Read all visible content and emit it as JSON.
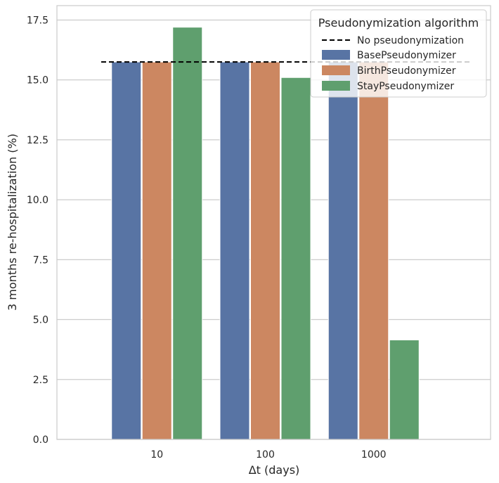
{
  "chart_data": {
    "type": "bar",
    "title": "",
    "xlabel": "Δt (days)",
    "ylabel": "3 months re-hospitalization (%)",
    "categories": [
      "10",
      "100",
      "1000"
    ],
    "ylim": [
      0,
      18.1
    ],
    "yticks": [
      "0.0",
      "2.5",
      "5.0",
      "7.5",
      "10.0",
      "12.5",
      "15.0",
      "17.5"
    ],
    "grid": "horizontal",
    "series": [
      {
        "name": "BasePseudonymizer",
        "color": "#5874a4",
        "values": [
          15.75,
          15.75,
          15.75
        ]
      },
      {
        "name": "BirthPseudonymizer",
        "color": "#cc8761",
        "values": [
          15.75,
          15.75,
          15.75
        ]
      },
      {
        "name": "StayPseudonymizer",
        "color": "#5f9f6e",
        "values": [
          17.2,
          15.1,
          4.15
        ]
      }
    ],
    "reference_line": {
      "name": "No pseudonymization",
      "value": 15.75,
      "style": "dashed",
      "color": "#000000"
    },
    "legend": {
      "title": "Pseudonymization algorithm",
      "placement": "top-right"
    }
  }
}
